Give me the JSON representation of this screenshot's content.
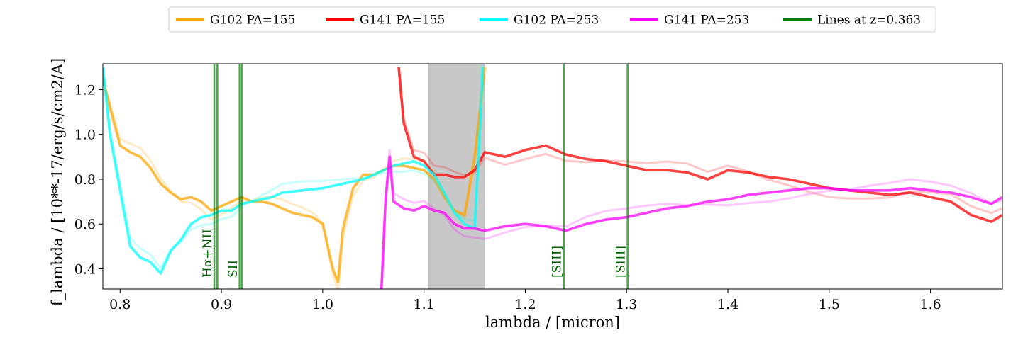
{
  "chart_data": {
    "type": "line",
    "xlabel": "lambda / [micron]",
    "ylabel": "f_lambda / [10**-17/erg/s/cm2/A]",
    "xlim": [
      0.783,
      1.671
    ],
    "ylim": [
      0.31,
      1.315
    ],
    "xticks": [
      0.8,
      0.9,
      1.0,
      1.1,
      1.2,
      1.3,
      1.4,
      1.5,
      1.6
    ],
    "yticks": [
      0.4,
      0.6,
      0.8,
      1.0,
      1.2
    ],
    "grid": false,
    "legend_position": "top-center, above plot",
    "shaded_region": {
      "x0": 1.105,
      "x1": 1.16,
      "color": "#c8c8c8"
    },
    "series": [
      {
        "name": "G102 PA=155",
        "color": "#ffa500",
        "x": [
          0.783,
          0.79,
          0.8,
          0.81,
          0.82,
          0.83,
          0.84,
          0.85,
          0.86,
          0.87,
          0.88,
          0.89,
          0.9,
          0.91,
          0.92,
          0.93,
          0.94,
          0.95,
          0.96,
          0.97,
          0.98,
          0.99,
          1.0,
          1.005,
          1.01,
          1.015,
          1.02,
          1.03,
          1.04,
          1.05,
          1.06,
          1.07,
          1.08,
          1.09,
          1.1,
          1.11,
          1.12,
          1.13,
          1.14,
          1.15,
          1.155,
          1.16
        ],
        "y": [
          1.25,
          1.12,
          0.95,
          0.92,
          0.9,
          0.85,
          0.78,
          0.74,
          0.71,
          0.72,
          0.7,
          0.66,
          0.68,
          0.7,
          0.72,
          0.7,
          0.7,
          0.69,
          0.67,
          0.65,
          0.64,
          0.63,
          0.6,
          0.5,
          0.4,
          0.34,
          0.58,
          0.76,
          0.82,
          0.82,
          0.84,
          0.86,
          0.86,
          0.85,
          0.84,
          0.8,
          0.72,
          0.66,
          0.64,
          0.9,
          1.1,
          1.3
        ]
      },
      {
        "name": "G141 PA=155",
        "color": "#ff0000",
        "x": [
          1.075,
          1.08,
          1.09,
          1.1,
          1.11,
          1.12,
          1.13,
          1.14,
          1.15,
          1.16,
          1.18,
          1.2,
          1.22,
          1.24,
          1.26,
          1.28,
          1.3,
          1.32,
          1.34,
          1.36,
          1.38,
          1.4,
          1.42,
          1.44,
          1.46,
          1.48,
          1.5,
          1.52,
          1.54,
          1.56,
          1.58,
          1.6,
          1.62,
          1.64,
          1.66,
          1.671
        ],
        "y": [
          1.3,
          1.05,
          0.9,
          0.88,
          0.82,
          0.82,
          0.81,
          0.81,
          0.84,
          0.92,
          0.9,
          0.93,
          0.95,
          0.91,
          0.89,
          0.88,
          0.86,
          0.84,
          0.84,
          0.83,
          0.8,
          0.84,
          0.83,
          0.81,
          0.8,
          0.78,
          0.76,
          0.75,
          0.74,
          0.73,
          0.74,
          0.72,
          0.7,
          0.64,
          0.61,
          0.64
        ]
      },
      {
        "name": "G102 PA=253",
        "color": "#00ffff",
        "x": [
          0.783,
          0.79,
          0.8,
          0.81,
          0.82,
          0.83,
          0.84,
          0.85,
          0.86,
          0.87,
          0.88,
          0.89,
          0.9,
          0.91,
          0.92,
          0.93,
          0.94,
          0.95,
          0.96,
          0.98,
          1.0,
          1.02,
          1.04,
          1.06,
          1.07,
          1.08,
          1.09,
          1.1,
          1.11,
          1.12,
          1.13,
          1.14,
          1.15,
          1.155,
          1.158
        ],
        "y": [
          1.3,
          1.0,
          0.75,
          0.5,
          0.45,
          0.43,
          0.38,
          0.48,
          0.53,
          0.6,
          0.63,
          0.64,
          0.66,
          0.66,
          0.69,
          0.7,
          0.71,
          0.72,
          0.74,
          0.75,
          0.76,
          0.78,
          0.8,
          0.84,
          0.86,
          0.87,
          0.88,
          0.86,
          0.82,
          0.74,
          0.65,
          0.6,
          0.58,
          1.0,
          1.3
        ]
      },
      {
        "name": "G141 PA=253",
        "color": "#ff00ff",
        "x": [
          1.058,
          1.062,
          1.066,
          1.07,
          1.08,
          1.09,
          1.1,
          1.11,
          1.12,
          1.13,
          1.14,
          1.15,
          1.16,
          1.18,
          1.2,
          1.22,
          1.24,
          1.26,
          1.28,
          1.3,
          1.32,
          1.34,
          1.36,
          1.38,
          1.4,
          1.42,
          1.44,
          1.46,
          1.48,
          1.5,
          1.52,
          1.54,
          1.56,
          1.58,
          1.6,
          1.62,
          1.64,
          1.66,
          1.671
        ],
        "y": [
          0.31,
          0.7,
          0.9,
          0.7,
          0.67,
          0.66,
          0.68,
          0.66,
          0.65,
          0.6,
          0.58,
          0.58,
          0.57,
          0.59,
          0.6,
          0.59,
          0.57,
          0.6,
          0.62,
          0.63,
          0.65,
          0.67,
          0.68,
          0.7,
          0.71,
          0.73,
          0.74,
          0.75,
          0.76,
          0.76,
          0.75,
          0.75,
          0.75,
          0.76,
          0.75,
          0.74,
          0.72,
          0.69,
          0.72
        ]
      },
      {
        "name": "Lines at z=0.363",
        "color": "#008000",
        "x": [],
        "y": []
      }
    ],
    "vertical_lines": [
      {
        "x": 0.893,
        "label": "Hα+NII"
      },
      {
        "x": 0.896,
        "label": ""
      },
      {
        "x": 0.918,
        "label": "SII"
      },
      {
        "x": 0.92,
        "label": ""
      },
      {
        "x": 1.238,
        "label": "[SIII]"
      },
      {
        "x": 1.301,
        "label": "[SIII]"
      }
    ]
  }
}
